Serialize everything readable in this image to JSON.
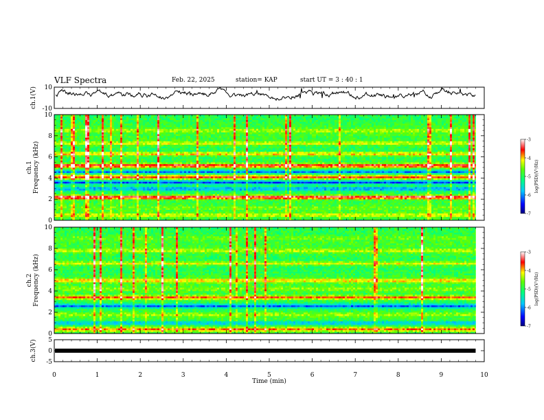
{
  "header": {
    "title": "VLF Spectra",
    "date": "Feb. 22, 2025",
    "station": "station= KAP",
    "start_ut": "start  UT  =   3  : 40 : 1"
  },
  "chart_data": [
    {
      "type": "line",
      "name": "ch1-voltage",
      "ylabel": "ch.1(V)",
      "ylim": [
        -10,
        10
      ],
      "yticks": [
        "10",
        "-10"
      ],
      "xlim": [
        0,
        10
      ],
      "baseline": 3,
      "noise_amplitude": 3.5
    },
    {
      "type": "heatmap",
      "name": "ch1-spectrogram",
      "ylabel_line1": "ch.1",
      "ylabel_line2": "Frequency  (kHz)",
      "ylim": [
        0,
        10
      ],
      "yticks": [
        "0",
        "2",
        "4",
        "6",
        "8",
        "10"
      ],
      "xlim": [
        0,
        10
      ],
      "data_end_min": 9.8,
      "colorbar": {
        "label": "log(PSD)(V²/Hz)",
        "range": [
          -7,
          -3
        ],
        "ticks": [
          "-3",
          "-4",
          "-5",
          "-6",
          "-7"
        ]
      },
      "bands": [
        {
          "f_khz": 0.5,
          "level": -4.2
        },
        {
          "f_khz": 1.2,
          "level": -4.6
        },
        {
          "f_khz": 2.2,
          "level": -3.3
        },
        {
          "f_khz": 3.0,
          "level": -6.0
        },
        {
          "f_khz": 3.6,
          "level": -6.3
        },
        {
          "f_khz": 4.1,
          "level": -3.6
        },
        {
          "f_khz": 4.6,
          "level": -6.1
        },
        {
          "f_khz": 5.2,
          "level": -3.4
        },
        {
          "f_khz": 6.3,
          "level": -4.0
        },
        {
          "f_khz": 7.3,
          "level": -4.2
        },
        {
          "f_khz": 8.5,
          "level": -4.4
        }
      ]
    },
    {
      "type": "heatmap",
      "name": "ch2-spectrogram",
      "ylabel_line1": "ch.2",
      "ylabel_line2": "Frequency  (kHz)",
      "ylim": [
        0,
        10
      ],
      "yticks": [
        "0",
        "2",
        "4",
        "6",
        "8",
        "10"
      ],
      "xlim": [
        0,
        10
      ],
      "data_end_min": 9.8,
      "colorbar": {
        "label": "log(PSD)(V²/Hz)",
        "range": [
          -7,
          -3
        ],
        "ticks": [
          "-3",
          "-4",
          "-5",
          "-6",
          "-7"
        ]
      },
      "bands": [
        {
          "f_khz": 0.4,
          "level": -3.8
        },
        {
          "f_khz": 1.0,
          "level": -5.8
        },
        {
          "f_khz": 1.8,
          "level": -4.4
        },
        {
          "f_khz": 2.6,
          "level": -6.2
        },
        {
          "f_khz": 3.4,
          "level": -3.7
        },
        {
          "f_khz": 4.2,
          "level": -4.5
        },
        {
          "f_khz": 5.0,
          "level": -4.0
        },
        {
          "f_khz": 6.6,
          "level": -4.2
        },
        {
          "f_khz": 7.8,
          "level": -4.3
        },
        {
          "f_khz": 9.0,
          "level": -4.6
        }
      ]
    },
    {
      "type": "line",
      "name": "ch3-voltage",
      "ylabel": "ch.3(V)",
      "ylim": [
        -5,
        5
      ],
      "yticks": [
        "5",
        "0",
        "-5"
      ],
      "xlim": [
        0,
        10
      ],
      "baseline": 0,
      "noise_amplitude": 0.4
    }
  ],
  "xaxis": {
    "label": "Time  (min)",
    "ticks": [
      "0",
      "1",
      "2",
      "3",
      "4",
      "5",
      "6",
      "7",
      "8",
      "9",
      "10"
    ]
  },
  "colors": {
    "line": "#000000",
    "frame": "#000000"
  }
}
